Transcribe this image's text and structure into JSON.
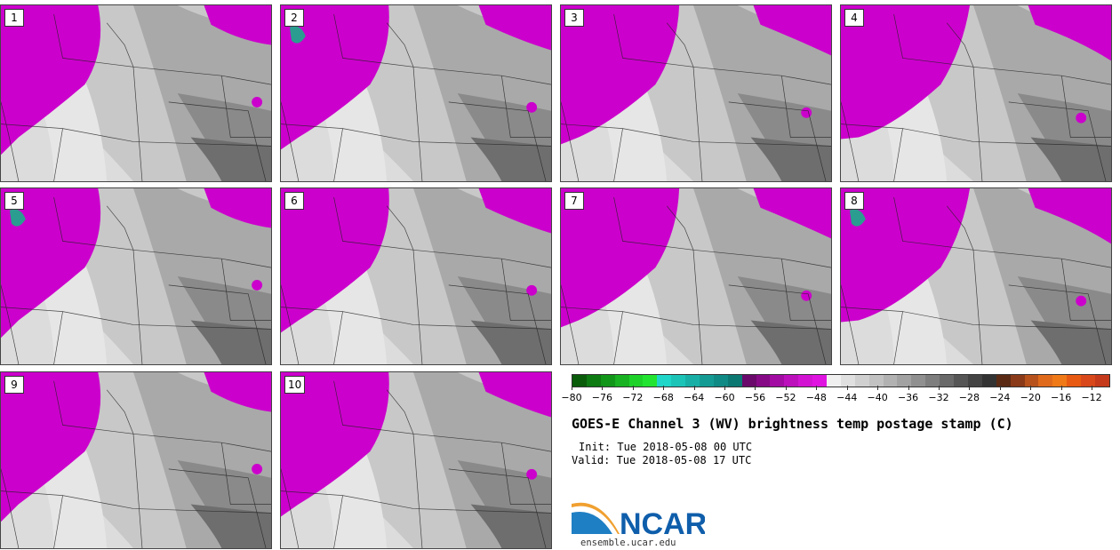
{
  "panels": [
    "1",
    "2",
    "3",
    "4",
    "5",
    "6",
    "7",
    "8",
    "9",
    "10"
  ],
  "colorbar": {
    "ticks": [
      "−80",
      "−76",
      "−72",
      "−68",
      "−64",
      "−60",
      "−56",
      "−52",
      "−48",
      "−44",
      "−40",
      "−36",
      "−32",
      "−28",
      "−24",
      "−20",
      "−16",
      "−12"
    ],
    "colors": [
      "#0a5c0a",
      "#0d7a12",
      "#12961a",
      "#18b222",
      "#1ed22a",
      "#24e432",
      "#1fd6c8",
      "#1cc4b8",
      "#18b0a6",
      "#149c94",
      "#108a84",
      "#0c7872",
      "#6a0a6a",
      "#860a86",
      "#a20ca2",
      "#bc10bc",
      "#d214d2",
      "#e014e0",
      "#f0f0f0",
      "#e0e0e0",
      "#d0d0d0",
      "#c2c2c2",
      "#b2b2b2",
      "#a2a2a2",
      "#909090",
      "#7e7e7e",
      "#6a6a6a",
      "#565656",
      "#444444",
      "#333333",
      "#5a2a14",
      "#8a3a18",
      "#b8521c",
      "#e06a1c",
      "#f07a18",
      "#e85a12",
      "#d8481a",
      "#c43a1a"
    ]
  },
  "title": "GOES-E Channel 3 (WV) brightness temp postage stamp (C)",
  "init": "Init: Tue 2018-05-08 00 UTC",
  "valid": "Valid: Tue 2018-05-08 17 UTC",
  "logo": {
    "text": "NCAR",
    "color": "#0f5eab"
  },
  "url": "ensemble.ucar.edu",
  "colors": {
    "moist": "#cc00cc",
    "teal": "#2a9d90"
  }
}
